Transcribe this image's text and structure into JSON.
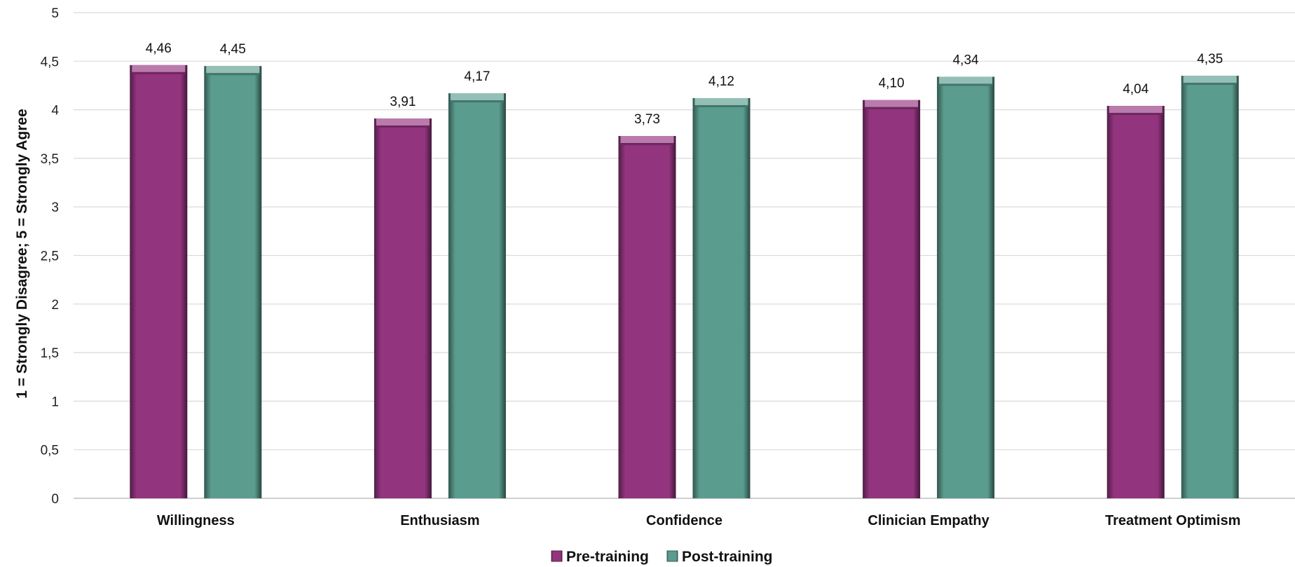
{
  "chart_data": {
    "type": "bar",
    "title": "",
    "xlabel": "",
    "ylabel": "1 = Strongly Disagree; 5 = Strongly Agree",
    "ylim": [
      0,
      5
    ],
    "yticks": [
      "0",
      "0,5",
      "1",
      "1,5",
      "2",
      "2,5",
      "3",
      "3,5",
      "4",
      "4,5",
      "5"
    ],
    "grid": true,
    "legend_position": "bottom",
    "categories": [
      "Willingness",
      "Enthusiasm",
      "Confidence",
      "Clinician Empathy",
      "Treatment Optimism"
    ],
    "series": [
      {
        "name": "Pre-training",
        "color": "#93347F",
        "values": [
          4.46,
          3.91,
          3.73,
          4.1,
          4.04
        ],
        "labels": [
          "4,46",
          "3,91",
          "3,73",
          "4,10",
          "4,04"
        ]
      },
      {
        "name": "Post-training",
        "color": "#5A9C8E",
        "values": [
          4.45,
          4.17,
          4.12,
          4.34,
          4.35
        ],
        "labels": [
          "4,45",
          "4,17",
          "4,12",
          "4,34",
          "4,35"
        ]
      }
    ]
  }
}
